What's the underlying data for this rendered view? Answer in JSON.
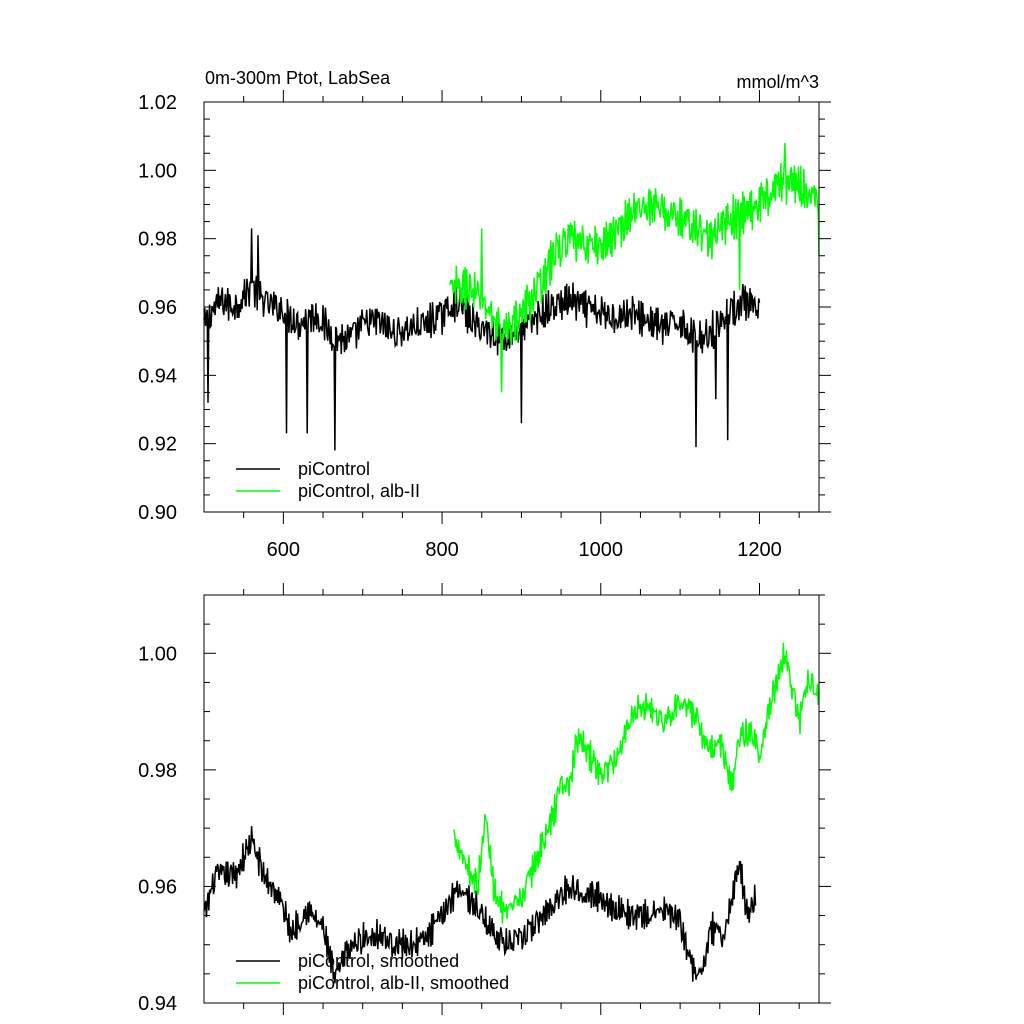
{
  "chart_data": [
    {
      "type": "line",
      "title": "0m-300m Ptot, LabSea",
      "units": "mmol/m^3",
      "xlim": [
        500,
        1275
      ],
      "ylim": [
        0.9,
        1.02
      ],
      "xticks": [
        600,
        800,
        1000,
        1200
      ],
      "xtick_labels": [
        "600",
        "800",
        "1000",
        "1200"
      ],
      "yticks": [
        0.9,
        0.92,
        0.94,
        0.96,
        0.98,
        1.0,
        1.02
      ],
      "ytick_labels": [
        "0.90",
        "0.92",
        "0.94",
        "0.96",
        "0.98",
        "1.00",
        "1.02"
      ],
      "grid": false,
      "legend_position": "bottom-left",
      "series": [
        {
          "name": "piControl",
          "color": "#000000",
          "x_start": 500,
          "x_end": 1200,
          "keyframes": [
            [
              500,
              0.955
            ],
            [
              520,
              0.962
            ],
            [
              540,
              0.96
            ],
            [
              560,
              0.966
            ],
            [
              580,
              0.961
            ],
            [
              600,
              0.959
            ],
            [
              620,
              0.955
            ],
            [
              640,
              0.958
            ],
            [
              660,
              0.952
            ],
            [
              680,
              0.95
            ],
            [
              700,
              0.955
            ],
            [
              720,
              0.956
            ],
            [
              740,
              0.952
            ],
            [
              760,
              0.954
            ],
            [
              780,
              0.955
            ],
            [
              800,
              0.958
            ],
            [
              820,
              0.962
            ],
            [
              840,
              0.955
            ],
            [
              860,
              0.953
            ],
            [
              880,
              0.951
            ],
            [
              900,
              0.954
            ],
            [
              920,
              0.957
            ],
            [
              940,
              0.96
            ],
            [
              960,
              0.962
            ],
            [
              980,
              0.96
            ],
            [
              1000,
              0.958
            ],
            [
              1020,
              0.957
            ],
            [
              1040,
              0.958
            ],
            [
              1060,
              0.956
            ],
            [
              1080,
              0.954
            ],
            [
              1100,
              0.956
            ],
            [
              1120,
              0.95
            ],
            [
              1140,
              0.953
            ],
            [
              1160,
              0.958
            ],
            [
              1180,
              0.962
            ],
            [
              1200,
              0.958
            ]
          ],
          "noise_amplitude": 0.0065,
          "dips": [
            [
              505,
              0.932
            ],
            [
              604,
              0.923
            ],
            [
              630,
              0.923
            ],
            [
              665,
              0.918
            ],
            [
              900,
              0.926
            ],
            [
              1120,
              0.919
            ],
            [
              1145,
              0.933
            ],
            [
              1160,
              0.921
            ]
          ],
          "spikes": [
            [
              560,
              0.983
            ],
            [
              568,
              0.981
            ]
          ]
        },
        {
          "name": "piControl, alb-II",
          "color": "#00ff00",
          "x_start": 810,
          "x_end": 1275,
          "keyframes": [
            [
              810,
              0.965
            ],
            [
              830,
              0.966
            ],
            [
              850,
              0.962
            ],
            [
              870,
              0.955
            ],
            [
              880,
              0.953
            ],
            [
              900,
              0.958
            ],
            [
              920,
              0.965
            ],
            [
              940,
              0.975
            ],
            [
              960,
              0.98
            ],
            [
              980,
              0.978
            ],
            [
              1000,
              0.978
            ],
            [
              1020,
              0.982
            ],
            [
              1040,
              0.988
            ],
            [
              1060,
              0.99
            ],
            [
              1080,
              0.988
            ],
            [
              1100,
              0.986
            ],
            [
              1120,
              0.983
            ],
            [
              1140,
              0.98
            ],
            [
              1160,
              0.985
            ],
            [
              1180,
              0.988
            ],
            [
              1200,
              0.99
            ],
            [
              1220,
              0.996
            ],
            [
              1240,
              0.997
            ],
            [
              1260,
              0.994
            ],
            [
              1275,
              0.99
            ]
          ],
          "noise_amplitude": 0.0075,
          "dips": [
            [
              875,
              0.935
            ],
            [
              1175,
              0.965
            ],
            [
              1275,
              0.975
            ]
          ],
          "spikes": [
            [
              850,
              0.983
            ],
            [
              1232,
              1.008
            ]
          ]
        }
      ]
    },
    {
      "type": "line",
      "title": "",
      "xlim": [
        500,
        1275
      ],
      "ylim": [
        0.94,
        1.01
      ],
      "xticks": [
        600,
        800,
        1000,
        1200
      ],
      "yticks": [
        0.94,
        0.96,
        0.98,
        1.0
      ],
      "ytick_labels": [
        "0.94",
        "0.96",
        "0.98",
        "1.00"
      ],
      "grid": false,
      "legend_position": "bottom-left",
      "series": [
        {
          "name": "piControl, smoothed",
          "color": "#000000",
          "x_start": 500,
          "x_end": 1195,
          "keyframes": [
            [
              500,
              0.955
            ],
            [
              515,
              0.962
            ],
            [
              540,
              0.962
            ],
            [
              560,
              0.968
            ],
            [
              575,
              0.962
            ],
            [
              595,
              0.958
            ],
            [
              610,
              0.952
            ],
            [
              630,
              0.956
            ],
            [
              650,
              0.953
            ],
            [
              665,
              0.944
            ],
            [
              680,
              0.949
            ],
            [
              700,
              0.951
            ],
            [
              720,
              0.952
            ],
            [
              740,
              0.95
            ],
            [
              760,
              0.95
            ],
            [
              780,
              0.951
            ],
            [
              800,
              0.955
            ],
            [
              820,
              0.96
            ],
            [
              840,
              0.957
            ],
            [
              860,
              0.953
            ],
            [
              880,
              0.95
            ],
            [
              900,
              0.951
            ],
            [
              920,
              0.954
            ],
            [
              940,
              0.957
            ],
            [
              960,
              0.96
            ],
            [
              980,
              0.959
            ],
            [
              1000,
              0.958
            ],
            [
              1020,
              0.956
            ],
            [
              1040,
              0.955
            ],
            [
              1060,
              0.955
            ],
            [
              1080,
              0.956
            ],
            [
              1100,
              0.954
            ],
            [
              1120,
              0.944
            ],
            [
              1130,
              0.947
            ],
            [
              1140,
              0.953
            ],
            [
              1155,
              0.951
            ],
            [
              1165,
              0.958
            ],
            [
              1175,
              0.964
            ],
            [
              1185,
              0.955
            ],
            [
              1195,
              0.958
            ]
          ],
          "noise_amplitude": 0.003
        },
        {
          "name": "piControl, alb-II, smoothed",
          "color": "#00ff00",
          "x_start": 815,
          "x_end": 1275,
          "keyframes": [
            [
              815,
              0.969
            ],
            [
              830,
              0.964
            ],
            [
              845,
              0.96
            ],
            [
              855,
              0.972
            ],
            [
              865,
              0.96
            ],
            [
              880,
              0.955
            ],
            [
              900,
              0.958
            ],
            [
              920,
              0.965
            ],
            [
              940,
              0.972
            ],
            [
              950,
              0.978
            ],
            [
              960,
              0.977
            ],
            [
              970,
              0.985
            ],
            [
              980,
              0.984
            ],
            [
              1000,
              0.979
            ],
            [
              1020,
              0.982
            ],
            [
              1040,
              0.99
            ],
            [
              1060,
              0.991
            ],
            [
              1080,
              0.988
            ],
            [
              1100,
              0.992
            ],
            [
              1120,
              0.989
            ],
            [
              1135,
              0.983
            ],
            [
              1150,
              0.985
            ],
            [
              1165,
              0.977
            ],
            [
              1175,
              0.986
            ],
            [
              1190,
              0.986
            ],
            [
              1200,
              0.983
            ],
            [
              1215,
              0.992
            ],
            [
              1232,
              1.0
            ],
            [
              1250,
              0.988
            ],
            [
              1262,
              0.996
            ],
            [
              1275,
              0.992
            ]
          ],
          "noise_amplitude": 0.003
        }
      ]
    }
  ]
}
